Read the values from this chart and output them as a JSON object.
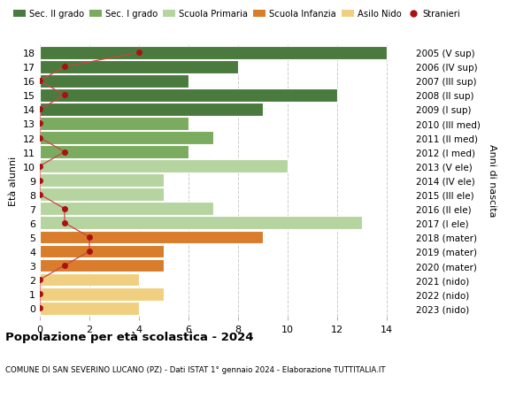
{
  "ages": [
    18,
    17,
    16,
    15,
    14,
    13,
    12,
    11,
    10,
    9,
    8,
    7,
    6,
    5,
    4,
    3,
    2,
    1,
    0
  ],
  "years": [
    "2005 (V sup)",
    "2006 (IV sup)",
    "2007 (III sup)",
    "2008 (II sup)",
    "2009 (I sup)",
    "2010 (III med)",
    "2011 (II med)",
    "2012 (I med)",
    "2013 (V ele)",
    "2014 (IV ele)",
    "2015 (III ele)",
    "2016 (II ele)",
    "2017 (I ele)",
    "2018 (mater)",
    "2019 (mater)",
    "2020 (mater)",
    "2021 (nido)",
    "2022 (nido)",
    "2023 (nido)"
  ],
  "bar_values": [
    14,
    8,
    6,
    12,
    9,
    6,
    7,
    6,
    10,
    5,
    5,
    7,
    13,
    9,
    5,
    5,
    4,
    5,
    4
  ],
  "bar_colors": [
    "#4a7a3d",
    "#4a7a3d",
    "#4a7a3d",
    "#4a7a3d",
    "#4a7a3d",
    "#7aab5e",
    "#7aab5e",
    "#7aab5e",
    "#b5d4a0",
    "#b5d4a0",
    "#b5d4a0",
    "#b5d4a0",
    "#b5d4a0",
    "#d97c2b",
    "#d97c2b",
    "#d97c2b",
    "#f0d080",
    "#f0d080",
    "#f0d080"
  ],
  "stranieri_x": [
    4,
    1,
    0,
    1,
    0,
    0,
    0,
    1,
    0,
    0,
    0,
    1,
    1,
    2,
    2,
    1,
    0,
    0,
    0
  ],
  "stranieri_color": "#aa1111",
  "stranieri_line_color": "#cc4444",
  "legend_labels": [
    "Sec. II grado",
    "Sec. I grado",
    "Scuola Primaria",
    "Scuola Infanzia",
    "Asilo Nido",
    "Stranieri"
  ],
  "legend_colors": [
    "#4a7a3d",
    "#7aab5e",
    "#b5d4a0",
    "#d97c2b",
    "#f0d080",
    "#aa1111"
  ],
  "ylabel_left": "Età alunni",
  "ylabel_right": "Anni di nascita",
  "xlim": [
    0,
    15
  ],
  "xticks": [
    0,
    2,
    4,
    6,
    8,
    10,
    12,
    14
  ],
  "title": "Popolazione per età scolastica - 2024",
  "subtitle": "COMUNE DI SAN SEVERINO LUCANO (PZ) - Dati ISTAT 1° gennaio 2024 - Elaborazione TUTTITALIA.IT",
  "bg_color": "#ffffff",
  "bar_edge_color": "#ffffff",
  "grid_color": "#cccccc"
}
